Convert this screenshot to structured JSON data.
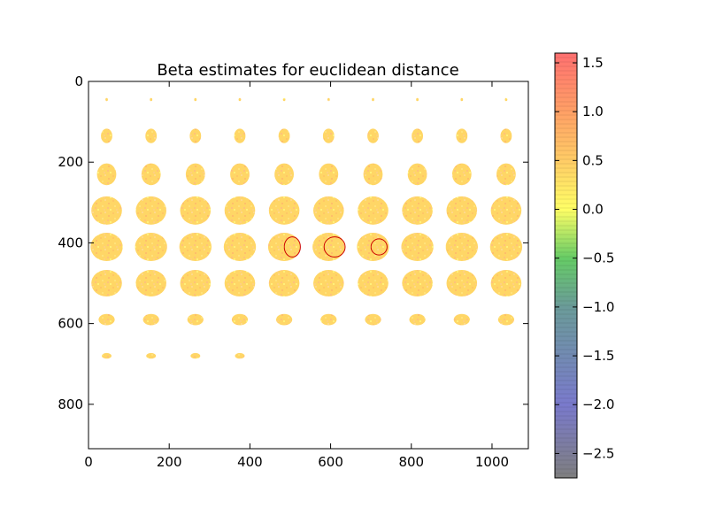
{
  "chart_data": {
    "type": "heatmap",
    "title": "Beta estimates for euclidean distance",
    "xlabel": "",
    "ylabel": "",
    "xlim": [
      0,
      1090
    ],
    "ylim": [
      910,
      0
    ],
    "x_ticks": [
      0,
      200,
      400,
      600,
      800,
      1000
    ],
    "y_ticks": [
      0,
      200,
      400,
      600,
      800
    ],
    "grid": false,
    "mosaic": {
      "tile_spacing": 100,
      "columns_x": [
        45,
        155,
        265,
        375,
        485,
        595,
        705,
        815,
        925,
        1035
      ],
      "rows": [
        {
          "y": 45,
          "slices": 10,
          "radius": [
            3,
            4
          ]
        },
        {
          "y": 135,
          "slices": 10,
          "radius": [
            14,
            18
          ]
        },
        {
          "y": 230,
          "slices": 10,
          "radius": [
            24,
            27
          ]
        },
        {
          "y": 320,
          "slices": 10,
          "radius": [
            38,
            35
          ]
        },
        {
          "y": 410,
          "slices": 10,
          "radius": [
            40,
            35
          ]
        },
        {
          "y": 500,
          "slices": 10,
          "radius": [
            38,
            33
          ]
        },
        {
          "y": 590,
          "slices": 10,
          "radius": [
            20,
            14
          ]
        },
        {
          "y": 680,
          "slices": 4,
          "radius": [
            12,
            7
          ]
        }
      ],
      "dominant_beta": 0.4
    },
    "highlights": [
      {
        "cx": 505,
        "cy": 410,
        "rx": 20,
        "ry": 25,
        "color": "#cc0000"
      },
      {
        "cx": 610,
        "cy": 410,
        "rx": 26,
        "ry": 25,
        "color": "#cc0000"
      },
      {
        "cx": 720,
        "cy": 410,
        "rx": 20,
        "ry": 20,
        "color": "#cc0000"
      }
    ],
    "colorbar": {
      "min": -2.75,
      "max": 1.6,
      "ticks": [
        1.5,
        1.0,
        0.5,
        0.0,
        -0.5,
        -1.0,
        -1.5,
        -2.0,
        -2.5
      ],
      "tick_labels": [
        "1.5",
        "1.0",
        "0.5",
        "0.0",
        "−0.5",
        "−1.0",
        "−1.5",
        "−2.0",
        "−2.5"
      ],
      "colormap_stops": [
        {
          "value": -2.75,
          "color": "#7f7f7f"
        },
        {
          "value": -2.0,
          "color": "#7a7acc"
        },
        {
          "value": -1.0,
          "color": "#6b9b99"
        },
        {
          "value": -0.5,
          "color": "#66cc66"
        },
        {
          "value": 0.0,
          "color": "#ffff66"
        },
        {
          "value": 0.5,
          "color": "#ffcc66"
        },
        {
          "value": 1.0,
          "color": "#ffa066"
        },
        {
          "value": 1.6,
          "color": "#ff7070"
        }
      ]
    }
  }
}
